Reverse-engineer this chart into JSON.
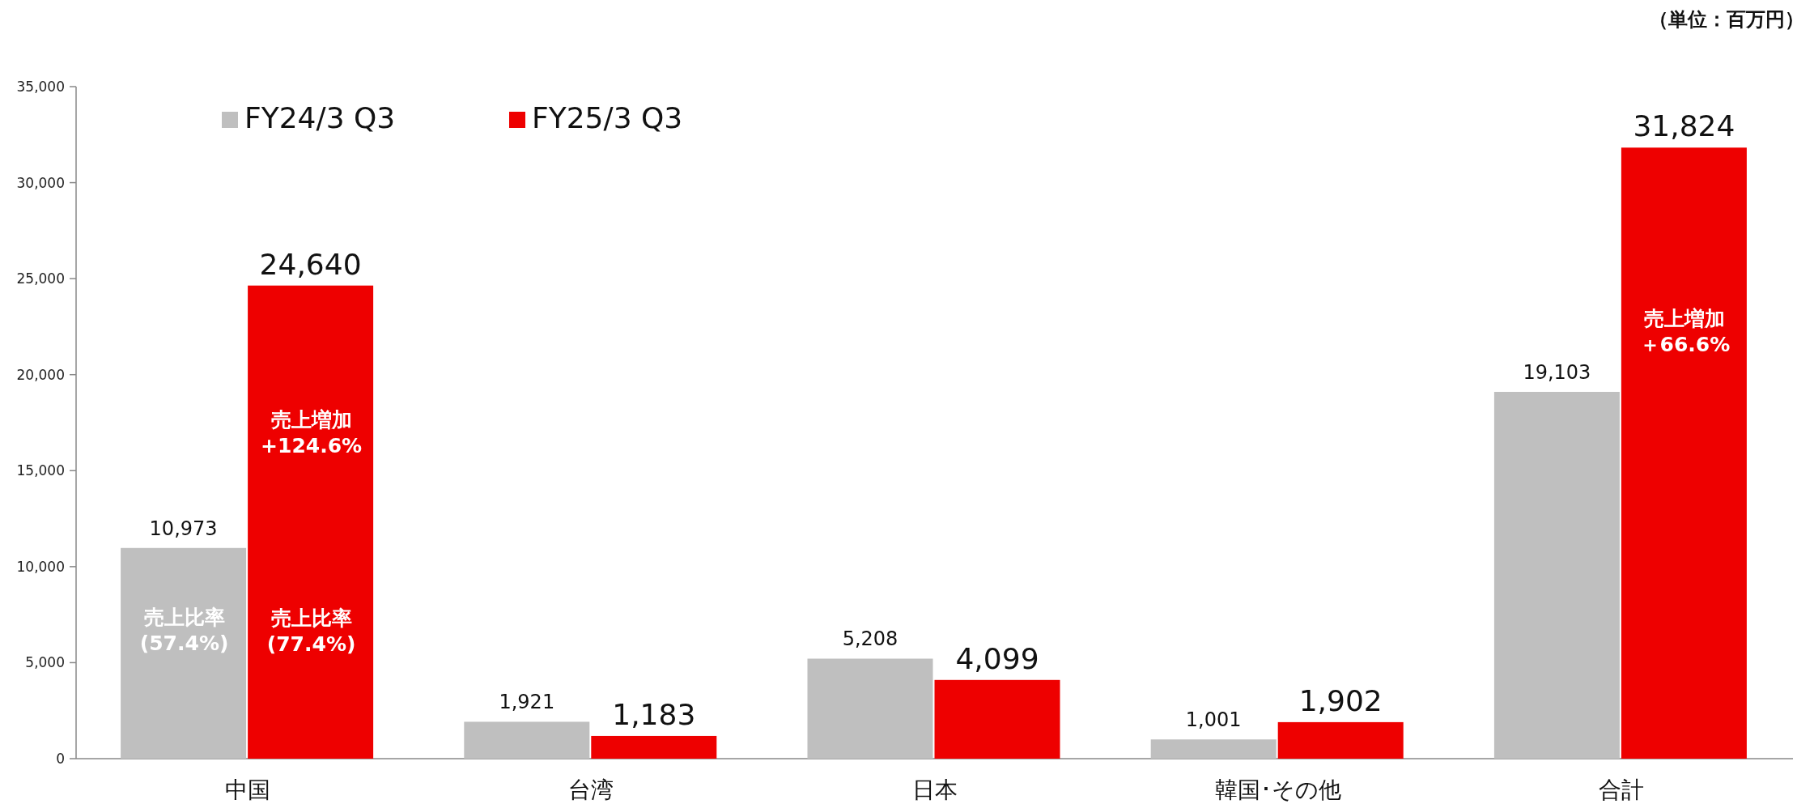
{
  "chart_data": {
    "type": "bar",
    "categories": [
      "中国",
      "台湾",
      "日本",
      "韓国･その他",
      "合計"
    ],
    "series": [
      {
        "name": "FY24/3 Q3",
        "color": "#bfbfbf",
        "values": [
          10973,
          1921,
          5208,
          1001,
          19103
        ]
      },
      {
        "name": "FY25/3 Q3",
        "color": "#ee0000",
        "values": [
          24640,
          1183,
          4099,
          1902,
          31824
        ]
      }
    ],
    "ylim": [
      0,
      35000
    ],
    "yticks": [
      {
        "value": 0,
        "label": "0"
      },
      {
        "value": 5000,
        "label": "5,000"
      },
      {
        "value": 10000,
        "label": "10,000"
      },
      {
        "value": 15000,
        "label": "15,000"
      },
      {
        "value": 20000,
        "label": "20,000"
      },
      {
        "value": 25000,
        "label": "25,000"
      },
      {
        "value": 30000,
        "label": "30,000"
      },
      {
        "value": 35000,
        "label": "35,000"
      }
    ],
    "value_labels": [
      [
        "10,973",
        "1,921",
        "5,208",
        "1,001",
        "19,103"
      ],
      [
        "24,640",
        "1,183",
        "4,099",
        "1,902",
        "31,824"
      ]
    ],
    "legend": "top left",
    "grid": false,
    "annotations": [
      "（単位：百万円）",
      "売上比率",
      "(57.4%)",
      "売上比率",
      "(77.4%)",
      "売上増加",
      "+124.6%",
      "売上増加",
      "＋66.6%"
    ]
  }
}
